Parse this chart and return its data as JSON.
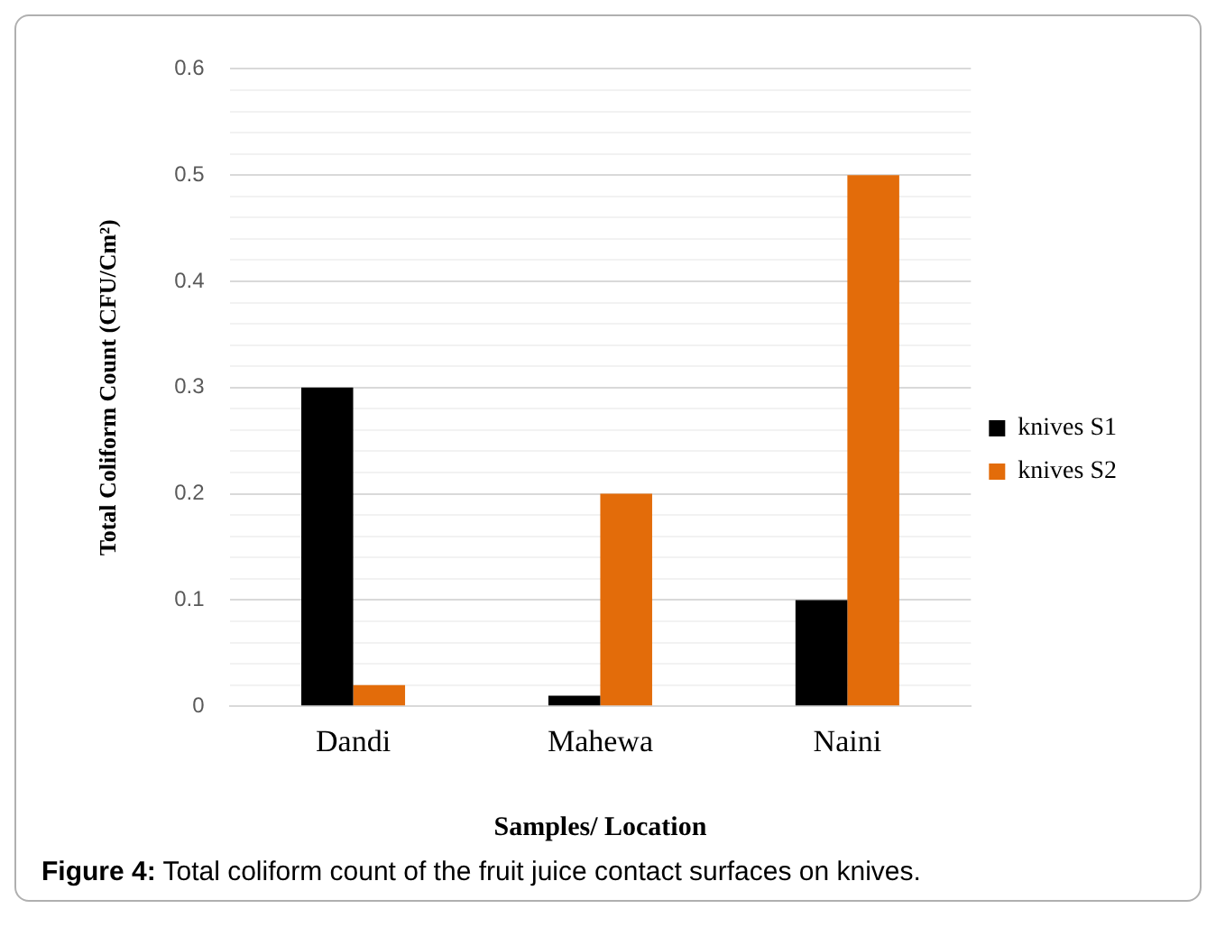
{
  "chart_data": {
    "type": "bar",
    "xlabel": "Samples/ Location",
    "ylabel": "Total Coliform Count (CFU/Cm²)",
    "categories": [
      "Dandi",
      "Mahewa",
      "Naini"
    ],
    "series": [
      {
        "name": "knives S1",
        "color": "#000000",
        "values": [
          0.3,
          0.01,
          0.1
        ]
      },
      {
        "name": "knives S2",
        "color": "#e36c0a",
        "values": [
          0.02,
          0.2,
          0.5
        ]
      }
    ],
    "ylim": [
      0,
      0.6
    ],
    "yticks": [
      0,
      {
        "value": 0.02,
        "label": null
      },
      {
        "value": 0.04,
        "label": null
      },
      {
        "value": 0.06,
        "label": null
      },
      {
        "value": 0.08,
        "label": null
      },
      0.1,
      {
        "value": 0.12,
        "label": null
      },
      {
        "value": 0.14,
        "label": null
      },
      {
        "value": 0.16,
        "label": null
      },
      {
        "value": 0.18,
        "label": null
      },
      0.2,
      {
        "value": 0.22,
        "label": null
      },
      {
        "value": 0.24,
        "label": null
      },
      {
        "value": 0.26,
        "label": null
      },
      {
        "value": 0.28,
        "label": null
      },
      0.3,
      {
        "value": 0.32,
        "label": null
      },
      {
        "value": 0.34,
        "label": null
      },
      {
        "value": 0.36,
        "label": null
      },
      {
        "value": 0.38,
        "label": null
      },
      0.4,
      {
        "value": 0.42,
        "label": null
      },
      {
        "value": 0.44,
        "label": null
      },
      {
        "value": 0.46,
        "label": null
      },
      {
        "value": 0.48,
        "label": null
      },
      0.5,
      {
        "value": 0.52,
        "label": null
      },
      {
        "value": 0.54,
        "label": null
      },
      {
        "value": 0.56,
        "label": null
      },
      {
        "value": 0.58,
        "label": null
      },
      0.6
    ],
    "grid": "y",
    "legend": "right",
    "annotations": [
      "Figure 4: Total coliform count of the fruit juice contact surfaces on knives."
    ]
  }
}
